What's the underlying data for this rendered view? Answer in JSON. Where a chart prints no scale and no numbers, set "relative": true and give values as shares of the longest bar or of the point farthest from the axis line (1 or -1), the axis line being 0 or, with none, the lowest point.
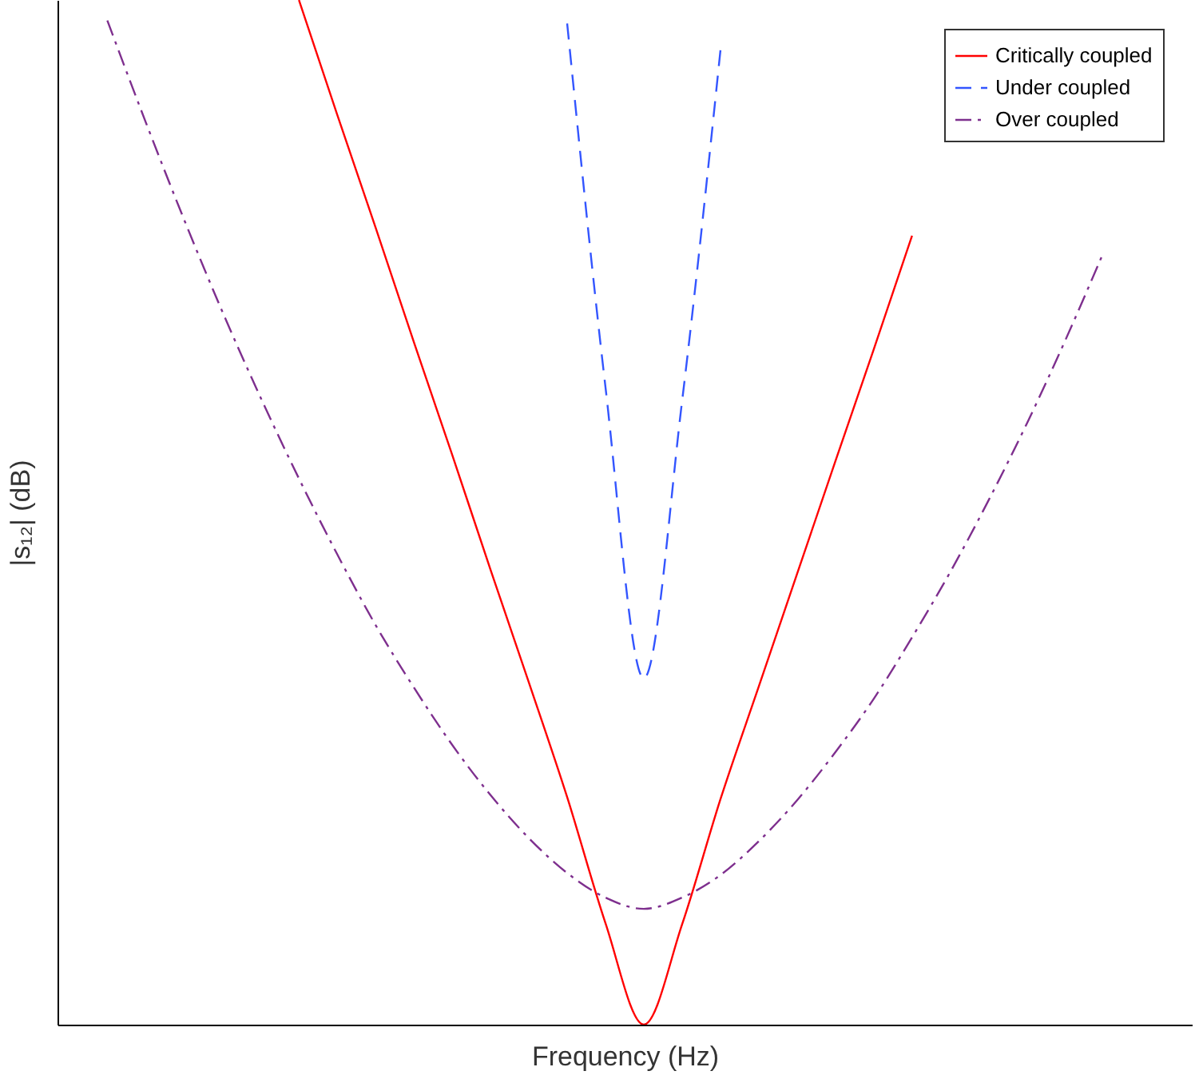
{
  "chart_data": {
    "type": "line",
    "relative": true,
    "xlabel": "Frequency (Hz)",
    "ylabel": "|s₁₂| (dB)",
    "legend": "top right",
    "categories": [
      null,
      null,
      null,
      null,
      null,
      null,
      null,
      null,
      null,
      null,
      null,
      null,
      null,
      null,
      null,
      null,
      null,
      null,
      null,
      null,
      null,
      null,
      null,
      null,
      null,
      null,
      null,
      null,
      null,
      null
    ],
    "series": [
      {
        "name": "Critically coupled",
        "color": "#ff0000",
        "line_style": "solid",
        "values": [
          null,
          null,
          null,
          null,
          null,
          null,
          1,
          0.888,
          0.778,
          0.666,
          0.556,
          0.444,
          0.334,
          0.222,
          0.099,
          0,
          0.098,
          0.22,
          0.33,
          0.44,
          0.55,
          0.659,
          0.77,
          null,
          null,
          null,
          null,
          null,
          null,
          null
        ]
      },
      {
        "name": "Under coupled",
        "color": "#3355ff",
        "line_style": "dashed",
        "values": [
          null,
          null,
          null,
          null,
          null,
          null,
          null,
          null,
          null,
          null,
          null,
          null,
          null,
          0.977,
          0.622,
          0.338,
          0.609,
          0.951,
          null,
          null,
          null,
          null,
          null,
          null,
          null,
          null,
          null,
          null,
          null,
          null
        ]
      },
      {
        "name": "Over coupled",
        "color": "#7e2f8e",
        "line_style": "dashdot",
        "values": [
          null,
          0.98,
          0.881,
          0.786,
          0.696,
          0.612,
          0.533,
          0.459,
          0.39,
          0.329,
          0.273,
          0.224,
          0.182,
          0.148,
          0.124,
          0.113,
          0.124,
          0.146,
          0.179,
          0.219,
          0.266,
          0.318,
          0.378,
          0.442,
          0.512,
          0.587,
          0.668,
          0.754,
          null,
          null
        ]
      }
    ]
  }
}
